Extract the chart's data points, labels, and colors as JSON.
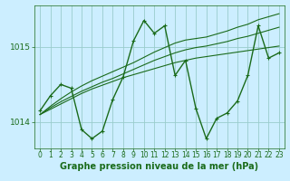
{
  "title": "Graphe pression niveau de la mer (hPa)",
  "bg_color": "#cceeff",
  "grid_color": "#99cccc",
  "line_color": "#1a6b1a",
  "xlim": [
    -0.5,
    23.5
  ],
  "ylim": [
    1013.65,
    1015.55
  ],
  "yticks": [
    1014,
    1015
  ],
  "xticks": [
    0,
    1,
    2,
    3,
    4,
    5,
    6,
    7,
    8,
    9,
    10,
    11,
    12,
    13,
    14,
    15,
    16,
    17,
    18,
    19,
    20,
    21,
    22,
    23
  ],
  "series_main": [
    1014.15,
    1014.35,
    1014.5,
    1014.45,
    1013.9,
    1013.78,
    1013.88,
    1014.3,
    1014.6,
    1015.08,
    1015.35,
    1015.18,
    1015.28,
    1014.62,
    1014.82,
    1014.18,
    1013.78,
    1014.05,
    1014.12,
    1014.28,
    1014.62,
    1015.28,
    1014.85,
    1014.92
  ],
  "trend1": [
    1014.1,
    1014.17,
    1014.24,
    1014.31,
    1014.38,
    1014.44,
    1014.49,
    1014.54,
    1014.59,
    1014.63,
    1014.67,
    1014.71,
    1014.75,
    1014.79,
    1014.82,
    1014.85,
    1014.87,
    1014.89,
    1014.91,
    1014.93,
    1014.95,
    1014.97,
    1014.99,
    1015.01
  ],
  "trend2": [
    1014.1,
    1014.19,
    1014.27,
    1014.34,
    1014.41,
    1014.47,
    1014.53,
    1014.58,
    1014.64,
    1014.7,
    1014.76,
    1014.82,
    1014.87,
    1014.92,
    1014.96,
    1014.99,
    1015.01,
    1015.04,
    1015.07,
    1015.11,
    1015.14,
    1015.18,
    1015.22,
    1015.26
  ],
  "trend3": [
    1014.1,
    1014.21,
    1014.31,
    1014.4,
    1014.48,
    1014.55,
    1014.61,
    1014.67,
    1014.73,
    1014.79,
    1014.86,
    1014.93,
    1014.99,
    1015.05,
    1015.09,
    1015.11,
    1015.13,
    1015.17,
    1015.21,
    1015.26,
    1015.3,
    1015.36,
    1015.4,
    1015.44
  ],
  "lw_main": 1.0,
  "lw_trend": 0.8,
  "font_color": "#1a6b1a",
  "tick_fontsize": 5.5,
  "ytick_fontsize": 6.5,
  "title_fontsize": 7.0
}
